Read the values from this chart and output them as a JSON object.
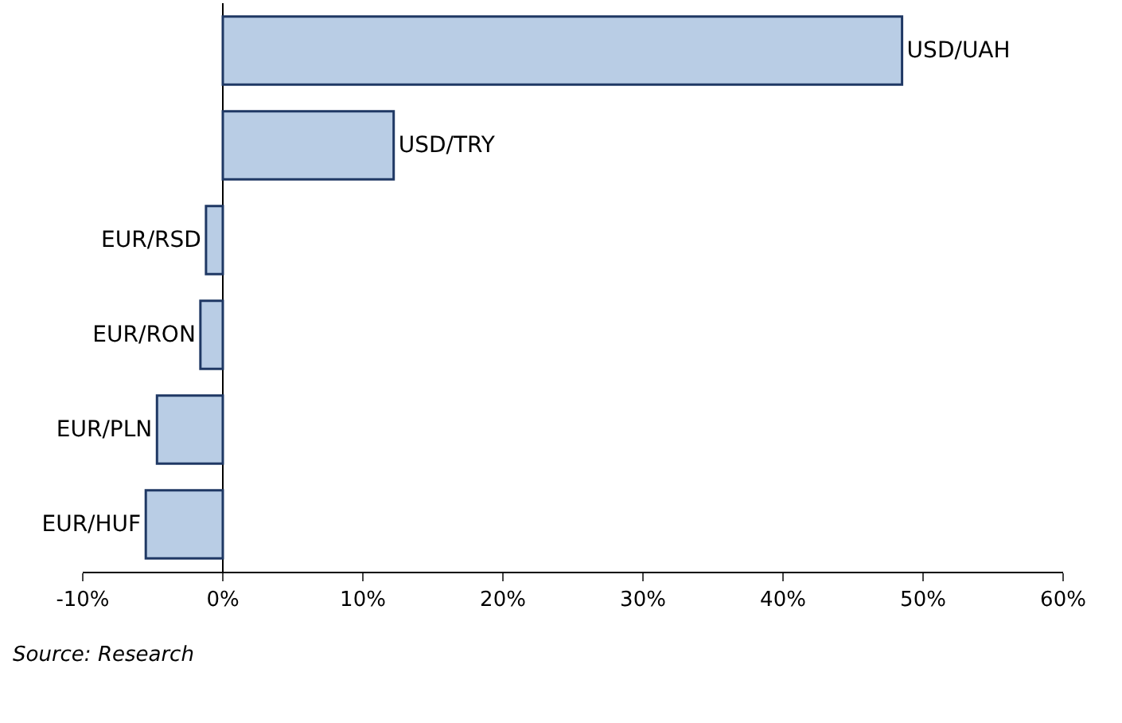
{
  "chart_data": {
    "type": "bar",
    "orientation": "horizontal",
    "categories": [
      "USD/UAH",
      "USD/TRY",
      "EUR/RSD",
      "EUR/RON",
      "EUR/PLN",
      "EUR/HUF"
    ],
    "values": [
      48.5,
      12.2,
      -1.2,
      -1.6,
      -4.7,
      -5.5
    ],
    "color": "#b9cde5",
    "xlim": [
      -10,
      60
    ],
    "xticks": [
      {
        "value": -10,
        "label": "-10%"
      },
      {
        "value": 0,
        "label": "0%"
      },
      {
        "value": 10,
        "label": "10%"
      },
      {
        "value": 20,
        "label": "20%"
      },
      {
        "value": 30,
        "label": "30%"
      },
      {
        "value": 40,
        "label": "40%"
      },
      {
        "value": 50,
        "label": "50%"
      },
      {
        "value": 60,
        "label": "60%"
      }
    ],
    "tick_labels": "x",
    "annotations": [
      "Source: Research"
    ]
  }
}
